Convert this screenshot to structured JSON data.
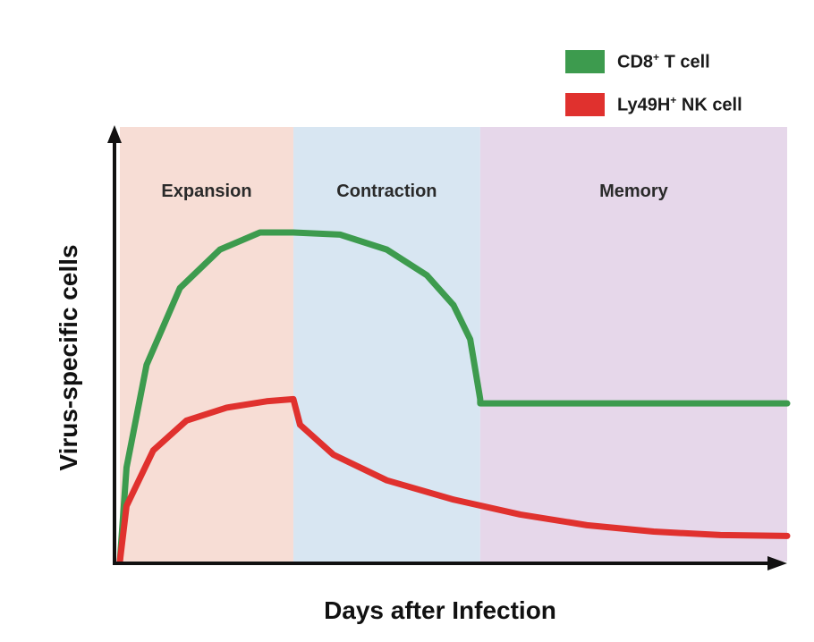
{
  "chart_data": {
    "type": "line",
    "title": "",
    "xlabel": "Days after Infection",
    "ylabel": "Virus-specific cells",
    "x_ticks_shown": false,
    "y_ticks_shown": false,
    "grid": false,
    "legend_placement": "top-right",
    "phases": [
      {
        "label": "Expansion",
        "x_range": [
          0,
          0.26
        ],
        "color": "#f7ddd5"
      },
      {
        "label": "Contraction",
        "x_range": [
          0.26,
          0.54
        ],
        "color": "#d8e6f2"
      },
      {
        "label": "Memory",
        "x_range": [
          0.54,
          1.0
        ],
        "color": "#e6d7ea"
      }
    ],
    "series": [
      {
        "name": "CD8",
        "name_suffix": "+",
        "name_rest": " T cell",
        "color": "#3d9b4e",
        "points": [
          [
            0,
            0
          ],
          [
            0.01,
            0.22
          ],
          [
            0.04,
            0.46
          ],
          [
            0.09,
            0.64
          ],
          [
            0.15,
            0.73
          ],
          [
            0.21,
            0.77
          ],
          [
            0.26,
            0.77
          ],
          [
            0.33,
            0.765
          ],
          [
            0.4,
            0.73
          ],
          [
            0.46,
            0.67
          ],
          [
            0.5,
            0.6
          ],
          [
            0.525,
            0.52
          ],
          [
            0.54,
            0.38
          ],
          [
            0.54,
            0.37
          ],
          [
            1.0,
            0.37
          ]
        ]
      },
      {
        "name": "Ly49H",
        "name_suffix": "+",
        "name_rest": " NK cell",
        "color": "#e0312e",
        "points": [
          [
            0,
            0
          ],
          [
            0.01,
            0.13
          ],
          [
            0.05,
            0.26
          ],
          [
            0.1,
            0.33
          ],
          [
            0.16,
            0.36
          ],
          [
            0.22,
            0.375
          ],
          [
            0.26,
            0.38
          ],
          [
            0.27,
            0.32
          ],
          [
            0.32,
            0.25
          ],
          [
            0.4,
            0.19
          ],
          [
            0.5,
            0.145
          ],
          [
            0.6,
            0.11
          ],
          [
            0.7,
            0.085
          ],
          [
            0.8,
            0.07
          ],
          [
            0.9,
            0.062
          ],
          [
            1.0,
            0.06
          ]
        ]
      }
    ]
  }
}
